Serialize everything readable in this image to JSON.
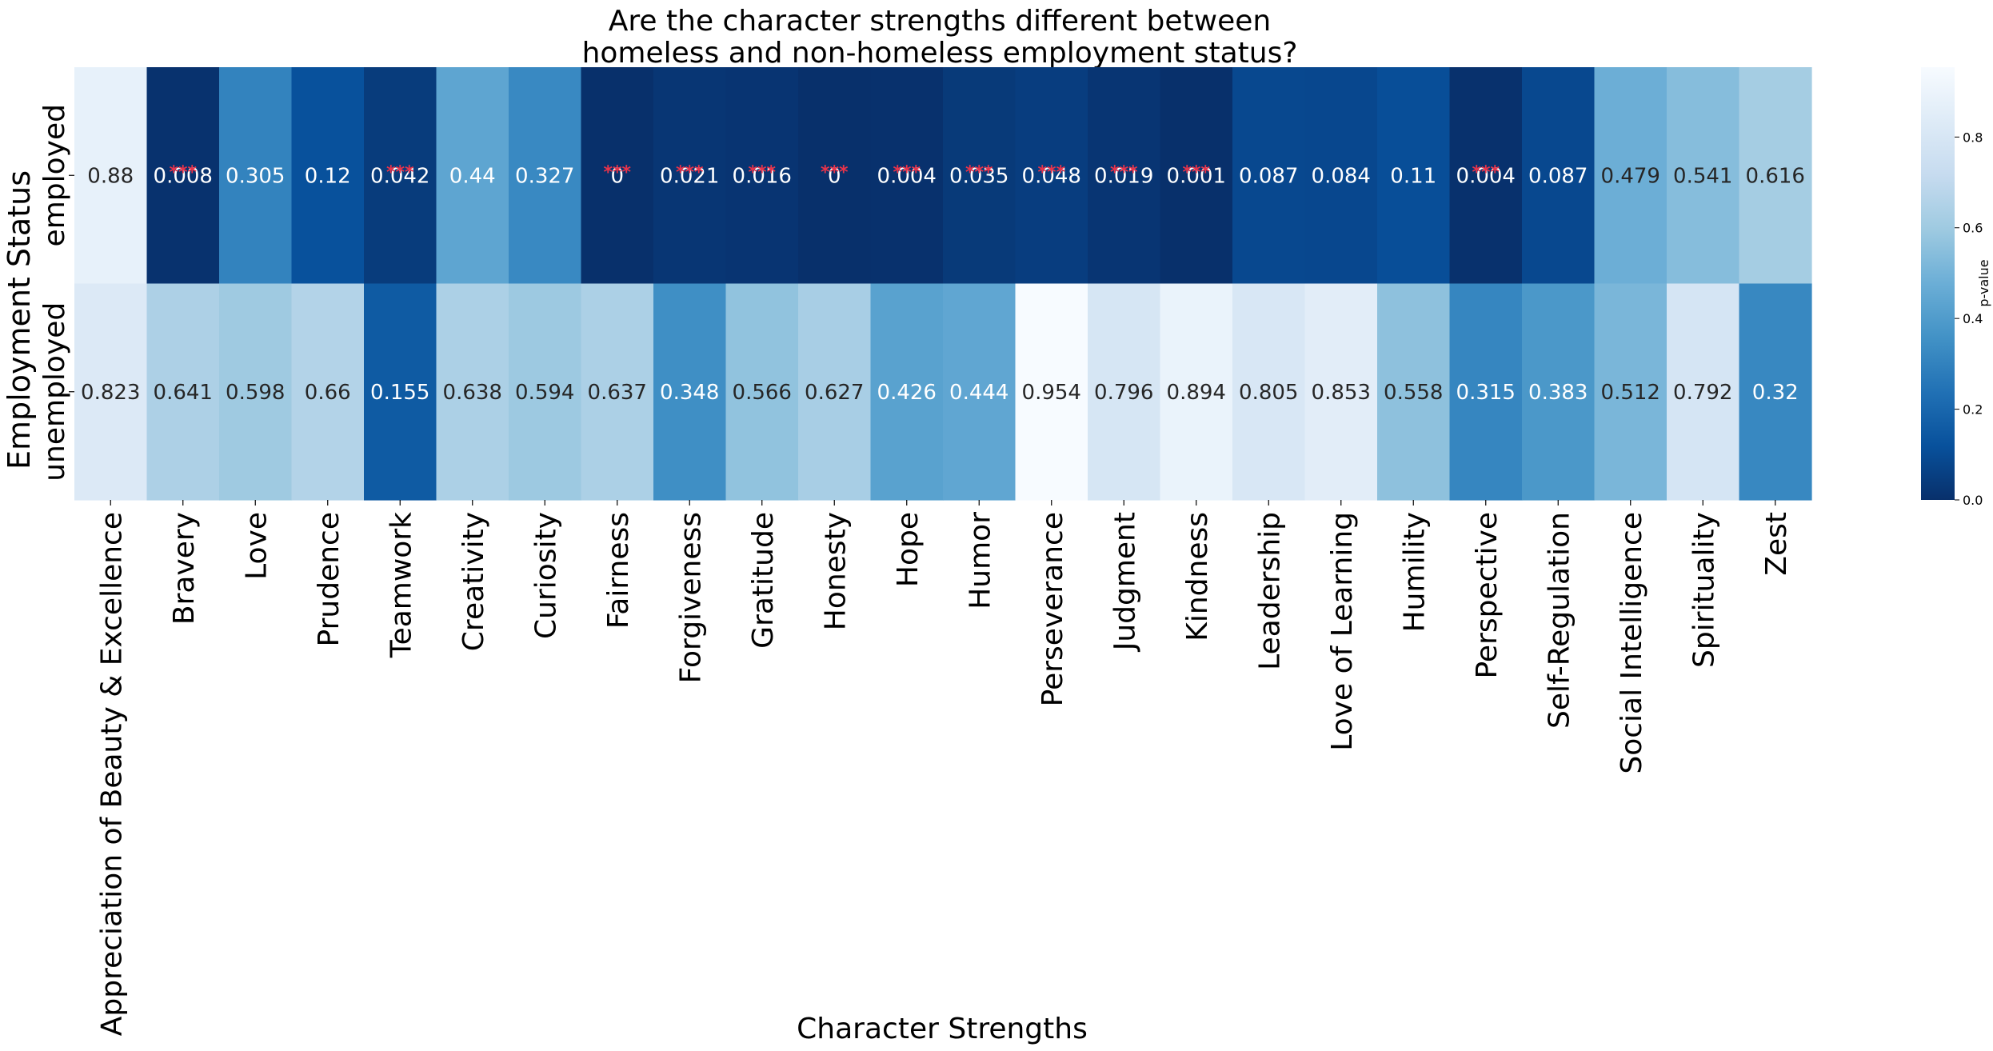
{
  "chart_data": {
    "type": "heatmap",
    "title": [
      "Are the character strengths different between",
      "homeless and non-homeless employment status?"
    ],
    "xlabel": "Character Strengths",
    "ylabel": "Employment Status",
    "categories": [
      "Appreciation of Beauty & Excellence",
      "Bravery",
      "Love",
      "Prudence",
      "Teamwork",
      "Creativity",
      "Curiosity",
      "Fairness",
      "Forgiveness",
      "Gratitude",
      "Honesty",
      "Hope",
      "Humor",
      "Perseverance",
      "Judgment",
      "Kindness",
      "Leadership",
      "Love of Learning",
      "Humility",
      "Perspective",
      "Self-Regulation",
      "Social Intelligence",
      "Spirituality",
      "Zest"
    ],
    "rows": [
      "employed",
      "unemployed"
    ],
    "values": [
      [
        0.88,
        0.008,
        0.305,
        0.12,
        0.042,
        0.44,
        0.327,
        0.0,
        0.021,
        0.016,
        0.0,
        0.004,
        0.035,
        0.048,
        0.019,
        0.001,
        0.087,
        0.084,
        0.11,
        0.004,
        0.087,
        0.479,
        0.541,
        0.616
      ],
      [
        0.823,
        0.641,
        0.598,
        0.66,
        0.155,
        0.638,
        0.594,
        0.637,
        0.348,
        0.566,
        0.627,
        0.426,
        0.444,
        0.954,
        0.796,
        0.894,
        0.805,
        0.853,
        0.558,
        0.315,
        0.383,
        0.512,
        0.792,
        0.32
      ]
    ],
    "significance_marker": "***",
    "significance_threshold": 0.05,
    "colorbar": {
      "label": "p-value",
      "ticks": [
        0.0,
        0.2,
        0.4,
        0.6,
        0.8
      ],
      "range": [
        0.0,
        0.954
      ]
    },
    "colormap": "Blues_r",
    "marker_color": "#e8334a"
  }
}
